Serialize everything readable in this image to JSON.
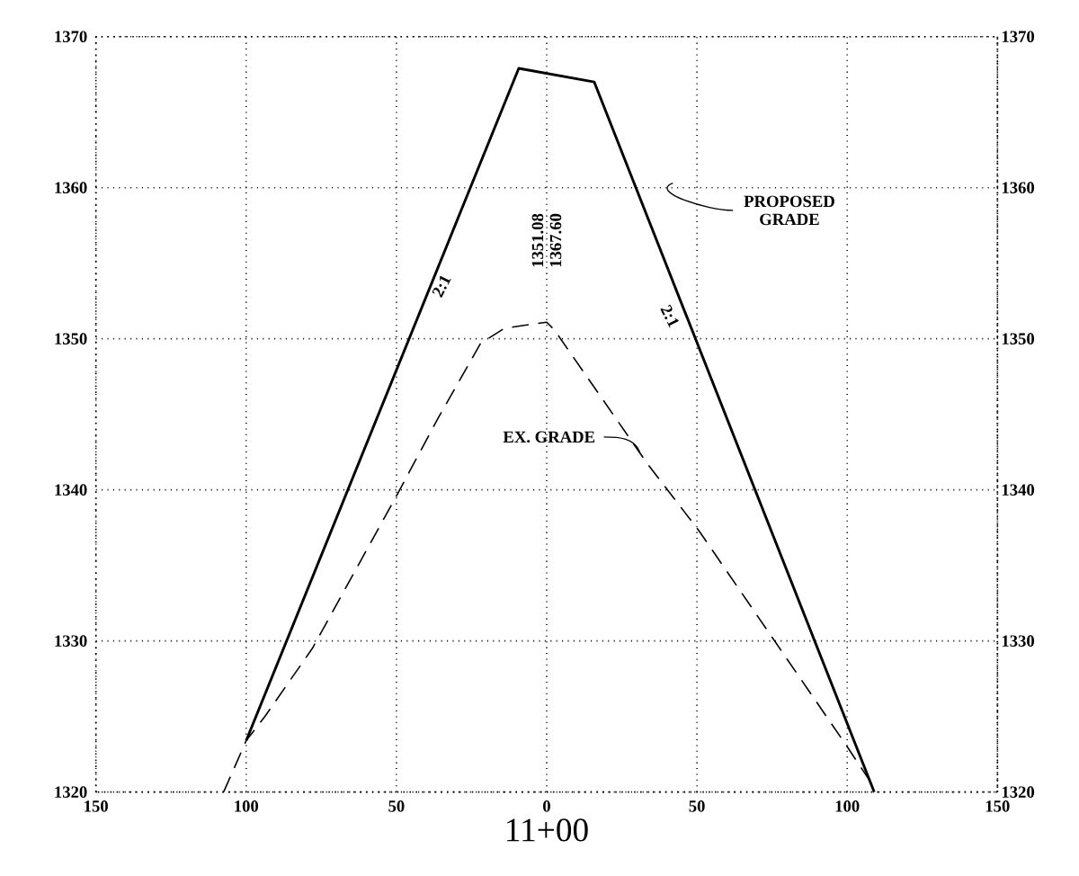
{
  "chart_data": {
    "type": "line",
    "xlabel": "11+00",
    "series": [
      {
        "name": "PROPOSED GRADE",
        "color": "#000000",
        "line_style": "solid",
        "x": [
          -100,
          -9.3,
          15.8,
          109
        ],
        "values": [
          1323.4,
          1367.9,
          1367.0,
          1320
        ]
      },
      {
        "name": "EX. GRADE",
        "color": "#000000",
        "line_style": "dashed",
        "x": [
          -107.5,
          -100,
          -93.8,
          -78,
          -50,
          -36,
          -22,
          -14,
          0,
          2.5,
          33.6,
          46,
          51,
          100,
          109
        ],
        "values": [
          1320,
          1323.4,
          1325,
          1329.5,
          1339.6,
          1344.8,
          1349.7,
          1350.7,
          1351.1,
          1350.6,
          1341.7,
          1338.5,
          1337.2,
          1323,
          1320.3
        ]
      }
    ],
    "annotations": [
      "2:1",
      "2:1",
      "1351.08",
      "1367.60"
    ],
    "xlim": [
      -150,
      150
    ],
    "xticks": [
      {
        "value": -150,
        "label": "150"
      },
      {
        "value": -100,
        "label": "100"
      },
      {
        "value": -50,
        "label": "50"
      },
      0,
      50,
      100,
      150
    ],
    "ylim": [
      1320,
      1370
    ],
    "yticks": [
      1320,
      1330,
      1340,
      1350,
      1360,
      1370
    ],
    "y2lim": [
      1320,
      1370
    ],
    "y2ticks": [
      1320,
      1330,
      1340,
      1350,
      1360,
      1370
    ],
    "grid": true,
    "marker": "none"
  }
}
